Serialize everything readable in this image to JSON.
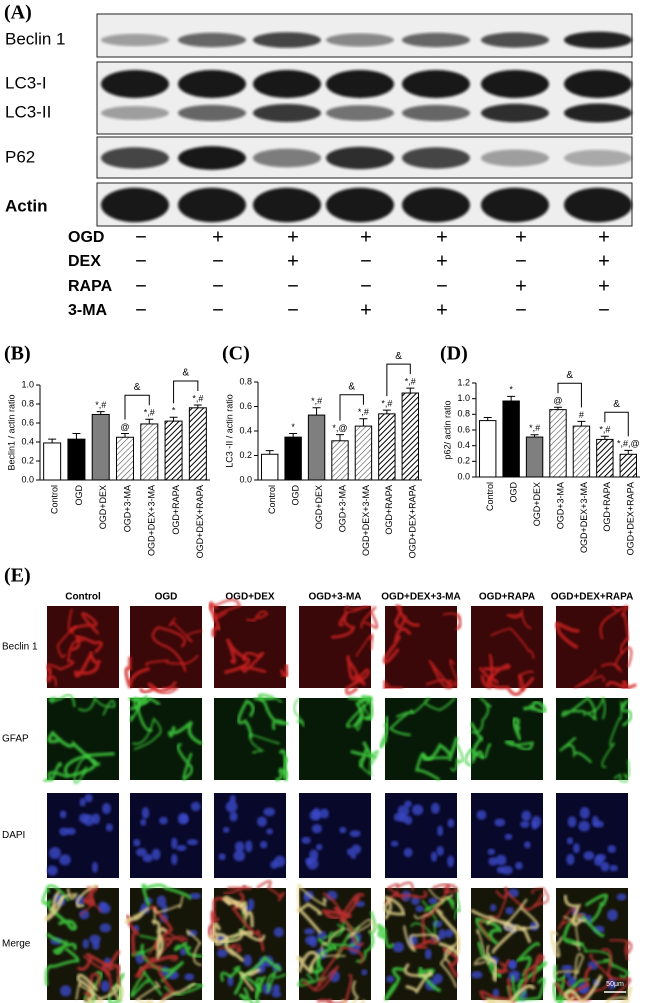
{
  "panel_a": {
    "label": "(A)",
    "blots": [
      "Beclin 1",
      "LC3-I",
      "LC3-II",
      "P62",
      "Actin"
    ],
    "treatments": [
      {
        "label": "OGD",
        "signs": [
          "−",
          "+",
          "+",
          "+",
          "+",
          "+",
          "+"
        ]
      },
      {
        "label": "DEX",
        "signs": [
          "−",
          "−",
          "+",
          "−",
          "+",
          "−",
          "+"
        ]
      },
      {
        "label": "RAPA",
        "signs": [
          "−",
          "−",
          "−",
          "−",
          "−",
          "+",
          "+"
        ]
      },
      {
        "label": "3-MA",
        "signs": [
          "−",
          "−",
          "−",
          "+",
          "+",
          "−",
          "−"
        ]
      }
    ]
  },
  "chart_data": [
    {
      "type": "bar",
      "panel": "(B)",
      "ylabel": "Beclin1 / actin ratio",
      "categories": [
        "Control",
        "OGD",
        "OGD+DEX",
        "OGD+3-MA",
        "OGD+DEX+3-MA",
        "OGD+RAPA",
        "OGD+DEX+RAPA"
      ],
      "values": [
        0.39,
        0.43,
        0.69,
        0.45,
        0.59,
        0.62,
        0.76
      ],
      "errors": [
        0.04,
        0.06,
        0.03,
        0.04,
        0.05,
        0.04,
        0.03
      ],
      "styles": [
        "open",
        "solid",
        "gray",
        "hatch",
        "hatch",
        "hatch-bold",
        "hatch-bold"
      ],
      "markers": [
        null,
        null,
        "*,#",
        "@",
        "*,#",
        "*",
        "*,#"
      ],
      "brackets": [
        {
          "between": [
            "OGD+3-MA",
            "OGD+DEX+3-MA"
          ],
          "label": "&"
        },
        {
          "between": [
            "OGD+RAPA",
            "OGD+DEX+RAPA"
          ],
          "label": "&"
        }
      ],
      "ylim": [
        0,
        1.0
      ],
      "yticks": [
        {
          "value": 0,
          "label": "0.0"
        },
        0.2,
        0.4,
        0.6,
        0.8,
        {
          "value": 1,
          "label": "1.0"
        }
      ]
    },
    {
      "type": "bar",
      "panel": "(C)",
      "ylabel": "LC3 -II / actin ratio",
      "categories": [
        "Control",
        "OGD",
        "OGD+DEX",
        "OGD+3-MA",
        "OGD+DEX+3-MA",
        "OGD+RAPA",
        "OGD+DEX+RAPA"
      ],
      "values": [
        0.21,
        0.35,
        0.53,
        0.32,
        0.44,
        0.54,
        0.71
      ],
      "errors": [
        0.03,
        0.03,
        0.06,
        0.05,
        0.06,
        0.03,
        0.04
      ],
      "styles": [
        "open",
        "solid",
        "gray",
        "hatch",
        "hatch",
        "hatch-bold",
        "hatch-bold"
      ],
      "markers": [
        null,
        "*",
        "*,#",
        "*,@",
        "*,#",
        "*,#",
        "*,#"
      ],
      "brackets": [
        {
          "between": [
            "OGD+3-MA",
            "OGD+DEX+3-MA"
          ],
          "label": "&"
        },
        {
          "between": [
            "OGD+RAPA",
            "OGD+DEX+RAPA"
          ],
          "label": "&"
        }
      ],
      "ylim": [
        0,
        0.8
      ],
      "yticks": [
        {
          "value": 0,
          "label": "0.0"
        },
        0.2,
        0.4,
        0.6,
        0.8
      ]
    },
    {
      "type": "bar",
      "panel": "(D)",
      "ylabel": "p62/ actin ratio",
      "categories": [
        "Control",
        "OGD",
        "OGD+DEX",
        "OGD+3-MA",
        "OGD+DEX+3-MA",
        "OGD+RAPA",
        "OGD+DEX+RAPA"
      ],
      "values": [
        0.72,
        0.97,
        0.51,
        0.86,
        0.65,
        0.48,
        0.29
      ],
      "errors": [
        0.04,
        0.06,
        0.03,
        0.03,
        0.06,
        0.04,
        0.05
      ],
      "styles": [
        "open",
        "solid",
        "gray",
        "hatch",
        "hatch",
        "hatch-bold",
        "hatch-bold"
      ],
      "markers": [
        null,
        "*",
        "*,#",
        "@",
        "#",
        "*,#",
        "*,#,@"
      ],
      "brackets": [
        {
          "between": [
            "OGD+3-MA",
            "OGD+DEX+3-MA"
          ],
          "label": "&"
        },
        {
          "between": [
            "OGD+RAPA",
            "OGD+DEX+RAPA"
          ],
          "label": "&"
        }
      ],
      "ylim": [
        0,
        1.2
      ],
      "yticks": [
        {
          "value": 0,
          "label": "0.0"
        },
        0.2,
        0.4,
        0.6,
        0.8,
        {
          "value": 1,
          "label": "1.0"
        },
        1.2
      ]
    }
  ],
  "panel_e": {
    "label": "(E)",
    "columns": [
      "Control",
      "OGD",
      "OGD+DEX",
      "OGD+3-MA",
      "OGD+DEX+3-MA",
      "OGD+RAPA",
      "OGD+DEX+RAPA"
    ],
    "rows": [
      "Beclin 1",
      "GFAP",
      "DAPI",
      "Merge"
    ],
    "scale_bar": "50μm"
  }
}
